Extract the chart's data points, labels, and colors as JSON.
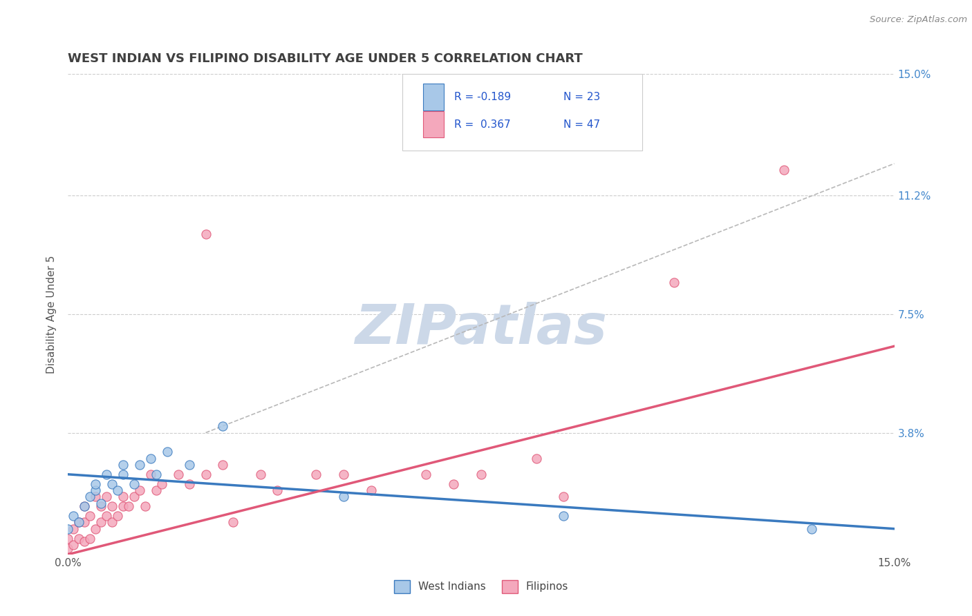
{
  "title": "WEST INDIAN VS FILIPINO DISABILITY AGE UNDER 5 CORRELATION CHART",
  "source_text": "Source: ZipAtlas.com",
  "ylabel": "Disability Age Under 5",
  "xmin": 0.0,
  "xmax": 0.15,
  "ymin": 0.0,
  "ymax": 0.15,
  "color_west_indian": "#a8c8e8",
  "color_filipino": "#f4a8bc",
  "line_color_west_indian": "#3a7abf",
  "line_color_filipino": "#e05878",
  "trend_color_gray": "#b8b8b8",
  "watermark_color": "#ccd8e8",
  "watermark_text": "ZIPatlas",
  "background_color": "#ffffff",
  "title_color": "#404040",
  "r_value_color": "#2255cc",
  "n_value_color": "#2255cc",
  "wi_trend_x0": 0.0,
  "wi_trend_x1": 0.15,
  "wi_trend_y0": 0.025,
  "wi_trend_y1": 0.008,
  "fi_trend_x0": 0.0,
  "fi_trend_x1": 0.15,
  "fi_trend_y0": 0.0,
  "fi_trend_y1": 0.065,
  "gray_trend_x0": 0.025,
  "gray_trend_x1": 0.15,
  "gray_trend_y0": 0.038,
  "gray_trend_y1": 0.122,
  "wi_x": [
    0.0,
    0.001,
    0.002,
    0.003,
    0.004,
    0.005,
    0.005,
    0.006,
    0.007,
    0.008,
    0.009,
    0.01,
    0.01,
    0.012,
    0.013,
    0.015,
    0.016,
    0.018,
    0.022,
    0.028,
    0.05,
    0.09,
    0.135
  ],
  "wi_y": [
    0.008,
    0.012,
    0.01,
    0.015,
    0.018,
    0.02,
    0.022,
    0.016,
    0.025,
    0.022,
    0.02,
    0.025,
    0.028,
    0.022,
    0.028,
    0.03,
    0.025,
    0.032,
    0.028,
    0.04,
    0.018,
    0.012,
    0.008
  ],
  "fi_x": [
    0.0,
    0.0,
    0.001,
    0.001,
    0.002,
    0.002,
    0.003,
    0.003,
    0.003,
    0.004,
    0.004,
    0.005,
    0.005,
    0.006,
    0.006,
    0.007,
    0.007,
    0.008,
    0.008,
    0.009,
    0.01,
    0.01,
    0.011,
    0.012,
    0.013,
    0.014,
    0.015,
    0.016,
    0.017,
    0.02,
    0.022,
    0.025,
    0.025,
    0.028,
    0.03,
    0.035,
    0.038,
    0.045,
    0.05,
    0.055,
    0.065,
    0.07,
    0.075,
    0.085,
    0.09,
    0.11,
    0.13
  ],
  "fi_y": [
    0.002,
    0.005,
    0.003,
    0.008,
    0.005,
    0.01,
    0.004,
    0.01,
    0.015,
    0.005,
    0.012,
    0.008,
    0.018,
    0.01,
    0.015,
    0.012,
    0.018,
    0.01,
    0.015,
    0.012,
    0.015,
    0.018,
    0.015,
    0.018,
    0.02,
    0.015,
    0.025,
    0.02,
    0.022,
    0.025,
    0.022,
    0.025,
    0.1,
    0.028,
    0.01,
    0.025,
    0.02,
    0.025,
    0.025,
    0.02,
    0.025,
    0.022,
    0.025,
    0.03,
    0.018,
    0.085,
    0.12
  ]
}
